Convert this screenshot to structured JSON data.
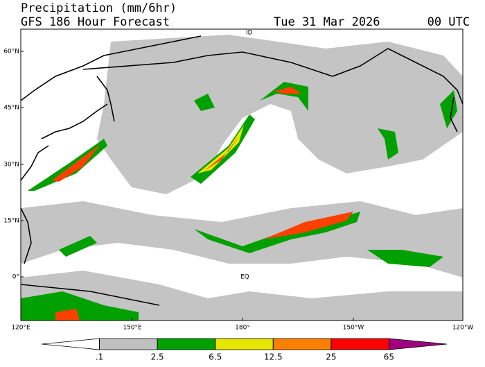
{
  "header": {
    "title": "Precipitation (mm/6hr)",
    "subtitle": "GFS 186 Hour Forecast",
    "date": "Tue 31 Mar 2026",
    "time": "00 UTC"
  },
  "map": {
    "lat_labels": [
      "60°N",
      "45°N",
      "30°N",
      "15°N",
      "0°"
    ],
    "lon_labels": [
      "120°E",
      "150°E",
      "180°",
      "150°W",
      "120°W"
    ],
    "labels": [
      "ID",
      "EQ"
    ]
  },
  "colorbar": {
    "ticks": [
      {
        "value": 0.1,
        "label": ".1"
      },
      2.5,
      6.5,
      12.5,
      25,
      65
    ],
    "colors": [
      "#ffffff",
      "#c0c0c0",
      "#00a000",
      "#e6e600",
      "#ff8000",
      "#ff0000",
      "#a00080"
    ]
  }
}
